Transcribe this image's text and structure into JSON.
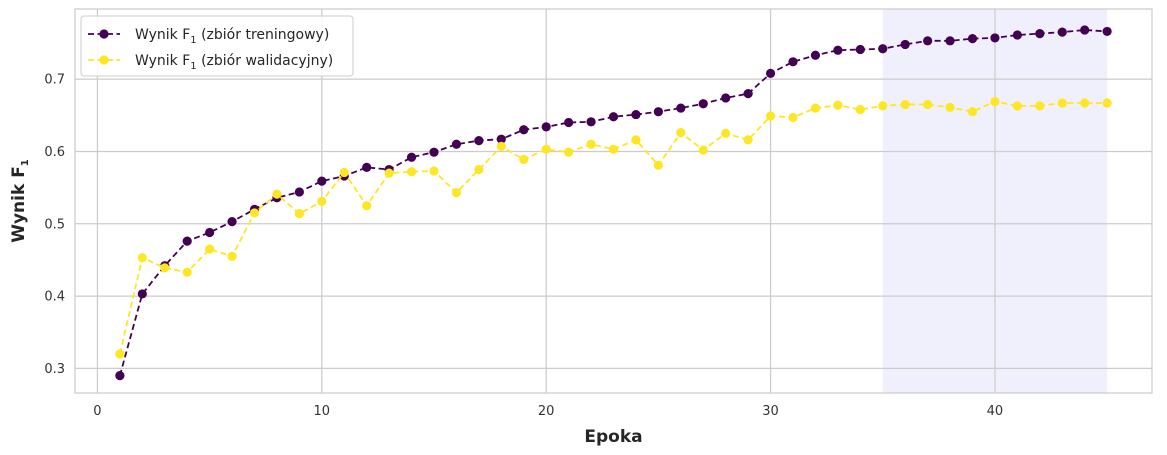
{
  "chart_data": {
    "type": "line",
    "xlabel": "Epoka",
    "ylabel": "Wynik F",
    "ylabel_subscript": "1",
    "xlim": [
      -1,
      47
    ],
    "ylim": [
      0.266,
      0.797
    ],
    "xticks": [
      0,
      10,
      20,
      30,
      40
    ],
    "yticks": [
      0.3,
      0.4,
      0.5,
      0.6,
      0.7
    ],
    "xtick_labels": [
      "0",
      "10",
      "20",
      "30",
      "40"
    ],
    "ytick_labels": [
      "0.3",
      "0.4",
      "0.5",
      "0.6",
      "0.7"
    ],
    "grid": true,
    "legend_position": "top-left",
    "highlight_region": {
      "x_start": 35,
      "x_end": 45,
      "color": "#e6e6fa"
    },
    "x": [
      1,
      2,
      3,
      4,
      5,
      6,
      7,
      8,
      9,
      10,
      11,
      12,
      13,
      14,
      15,
      16,
      17,
      18,
      19,
      20,
      21,
      22,
      23,
      24,
      25,
      26,
      27,
      28,
      29,
      30,
      31,
      32,
      33,
      34,
      35,
      36,
      37,
      38,
      39,
      40,
      41,
      42,
      43,
      44,
      45
    ],
    "series": [
      {
        "name": "Wynik F",
        "name_subscript": "1",
        "name_suffix": "(zbiór treningowy)",
        "color": "#440154",
        "values": [
          0.29,
          0.403,
          0.442,
          0.476,
          0.488,
          0.503,
          0.52,
          0.536,
          0.544,
          0.559,
          0.566,
          0.578,
          0.575,
          0.592,
          0.599,
          0.61,
          0.615,
          0.617,
          0.63,
          0.634,
          0.64,
          0.641,
          0.648,
          0.651,
          0.655,
          0.66,
          0.666,
          0.674,
          0.68,
          0.708,
          0.724,
          0.733,
          0.74,
          0.741,
          0.742,
          0.748,
          0.753,
          0.753,
          0.756,
          0.757,
          0.761,
          0.763,
          0.765,
          0.768,
          0.766
        ]
      },
      {
        "name": "Wynik F",
        "name_subscript": "1",
        "name_suffix": "(zbiór walidacyjny)",
        "color": "#fde725",
        "values": [
          0.32,
          0.453,
          0.439,
          0.433,
          0.465,
          0.455,
          0.515,
          0.541,
          0.514,
          0.531,
          0.571,
          0.525,
          0.57,
          0.572,
          0.573,
          0.543,
          0.575,
          0.607,
          0.589,
          0.603,
          0.599,
          0.61,
          0.603,
          0.616,
          0.581,
          0.626,
          0.602,
          0.625,
          0.616,
          0.649,
          0.647,
          0.66,
          0.664,
          0.658,
          0.663,
          0.665,
          0.665,
          0.661,
          0.655,
          0.669,
          0.663,
          0.663,
          0.667,
          0.667,
          0.667
        ]
      }
    ]
  }
}
